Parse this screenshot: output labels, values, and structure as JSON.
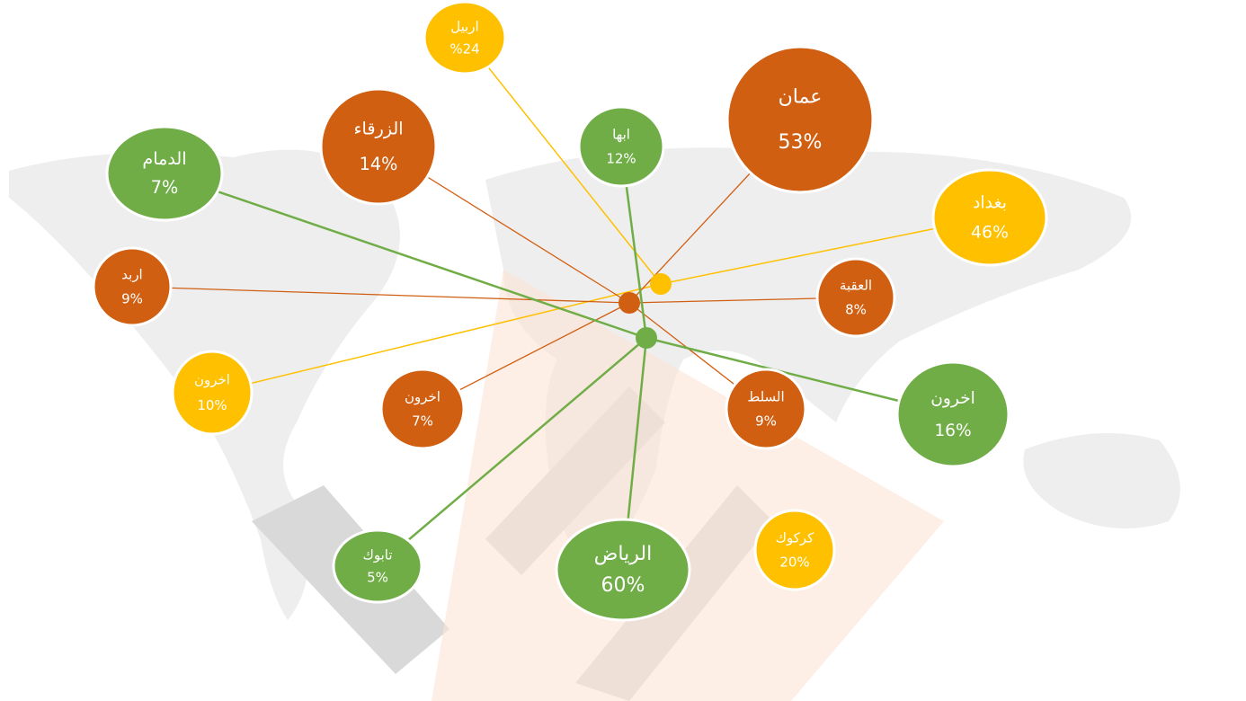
{
  "groups": [
    {
      "color": "#ffc000",
      "nodes": [
        {
          "name": "اربيل",
          "value": "%24"
        },
        {
          "name": "بغداد",
          "value": "46%"
        },
        {
          "name": "اخرون",
          "value": "10%"
        },
        {
          "name": "كركوك",
          "value": "20%"
        }
      ]
    },
    {
      "color": "#d15f12",
      "nodes": [
        {
          "name": "عمان",
          "value": "53%"
        },
        {
          "name": "الزرقاء",
          "value": "14%"
        },
        {
          "name": "اربد",
          "value": "9%"
        },
        {
          "name": "العقبة",
          "value": "8%"
        },
        {
          "name": "اخرون",
          "value": "7%"
        },
        {
          "name": "السلط",
          "value": "9%"
        }
      ]
    },
    {
      "color": "#70ad47",
      "nodes": [
        {
          "name": "ابها",
          "value": "12%"
        },
        {
          "name": "الدمام",
          "value": "7%"
        },
        {
          "name": "اخرون",
          "value": "16%"
        },
        {
          "name": "تابوك",
          "value": "5%"
        },
        {
          "name": "الرياض",
          "value": "60%"
        }
      ]
    }
  ]
}
